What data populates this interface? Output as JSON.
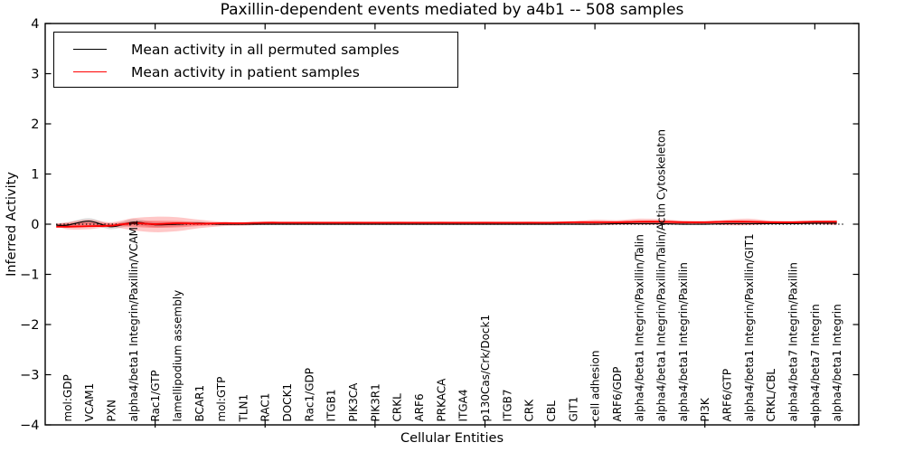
{
  "figure": {
    "title": "Paxillin-dependent events mediated by a4b1 -- 508 samples",
    "xlabel": "Cellular Entities",
    "ylabel": "Inferred Activity"
  },
  "legend": {
    "items": [
      {
        "label": "Mean activity in all permuted samples",
        "color": "#000000"
      },
      {
        "label": "Mean activity in patient samples",
        "color": "#ff0000"
      }
    ]
  },
  "colors": {
    "permuted_line": "#000000",
    "patient_line": "#ff0000",
    "patient_band": "#ff0000",
    "permuted_band": "#000000",
    "frame": "#000000",
    "zero_line": "#000000"
  },
  "chart_data": {
    "type": "line",
    "title": "Paxillin-dependent events mediated by a4b1 -- 508 samples",
    "xlabel": "Cellular Entities",
    "ylabel": "Inferred Activity",
    "xlim": [
      0,
      37
    ],
    "ylim": [
      -4,
      4
    ],
    "grid": false,
    "legend_position": "upper left",
    "yticks": [
      4,
      3,
      2,
      1,
      0,
      -1,
      -2,
      -3,
      -4
    ],
    "yticklabels": [
      "4",
      "3",
      "2",
      "1",
      "0",
      "−1",
      "−2",
      "−3",
      "−4"
    ],
    "xticks_major": [
      5,
      10,
      15,
      20,
      25,
      30,
      35
    ],
    "zero_line": {
      "y": 0,
      "style": "dotted"
    },
    "categories": [
      "mol:GDP",
      "VCAM1",
      "PXN",
      "alpha4/beta1 Integrin/Paxillin/VCAM1",
      "Rac1/GTP",
      "lamellipodium assembly",
      "BCAR1",
      "mol:GTP",
      "TLN1",
      "RAC1",
      "DOCK1",
      "Rac1/GDP",
      "ITGB1",
      "PIK3CA",
      "PIK3R1",
      "CRKL",
      "ARF6",
      "PRKACA",
      "ITGA4",
      "p130Cas/Crk/Dock1",
      "ITGB7",
      "CRK",
      "CBL",
      "GIT1",
      "cell adhesion",
      "ARF6/GDP",
      "alpha4/beta1 Integrin/Paxillin/Talin",
      "alpha4/beta1 Integrin/Paxillin/Talin/Actin Cytoskeleton",
      "alpha4/beta1 Integrin/Paxillin",
      "PI3K",
      "ARF6/GTP",
      "alpha4/beta1 Integrin/Paxillin/GIT1",
      "CRKL/CBL",
      "alpha4/beta7 Integrin/Paxillin",
      "alpha4/beta7 Integrin",
      "alpha4/beta1 Integrin"
    ],
    "series": [
      {
        "name": "Mean activity in all permuted samples",
        "color": "#000000",
        "values": [
          -0.02,
          0.06,
          -0.05,
          0.04,
          -0.01,
          0,
          0.02,
          0,
          0,
          0,
          0,
          0,
          0,
          0,
          0,
          0,
          0,
          0,
          0,
          0,
          0,
          0,
          0,
          0,
          0,
          0.01,
          0.01,
          0.01,
          0,
          0,
          0.01,
          0.01,
          0.01,
          0.01,
          0.02,
          0.02
        ]
      },
      {
        "name": "Mean activity in patient samples",
        "color": "#ff0000",
        "values": [
          -0.05,
          -0.04,
          -0.03,
          0.02,
          0,
          0.02,
          0.01,
          0.02,
          0.02,
          0.03,
          0.03,
          0.03,
          0.03,
          0.03,
          0.03,
          0.03,
          0.03,
          0.03,
          0.03,
          0.03,
          0.03,
          0.03,
          0.03,
          0.04,
          0.04,
          0.04,
          0.05,
          0.05,
          0.04,
          0.04,
          0.05,
          0.05,
          0.04,
          0.04,
          0.05,
          0.05
        ]
      }
    ],
    "bands": [
      {
        "name": "patient-band",
        "color": "#ff0000",
        "opacity": 0.22,
        "upper": [
          0.04,
          0.09,
          0.04,
          0.12,
          0.15,
          0.14,
          0.09,
          0.05,
          0.04,
          0.05,
          0.04,
          0.05,
          0.04,
          0.05,
          0.04,
          0.05,
          0.04,
          0.05,
          0.04,
          0.05,
          0.04,
          0.05,
          0.04,
          0.05,
          0.09,
          0.08,
          0.11,
          0.1,
          0.07,
          0.06,
          0.09,
          0.11,
          0.07,
          0.06,
          0.07,
          0.08
        ],
        "lower": [
          -0.1,
          -0.1,
          -0.06,
          -0.12,
          -0.16,
          -0.14,
          -0.08,
          -0.04,
          -0.03,
          -0.01,
          -0.01,
          -0.01,
          -0.01,
          -0.01,
          -0.01,
          -0.01,
          -0.01,
          -0.01,
          -0.01,
          -0.01,
          -0.01,
          -0.01,
          -0.01,
          -0.01,
          -0.02,
          -0.01,
          -0.01,
          -0.01,
          0,
          0,
          -0.02,
          -0.02,
          0,
          0,
          0,
          -0.02
        ]
      },
      {
        "name": "permuted-band",
        "color": "#000000",
        "opacity": 0.13,
        "upper": [
          0.03,
          0.12,
          0.0,
          0.1,
          0.04,
          0.04,
          0.05,
          0.02,
          0.01,
          0.005,
          0.005,
          0.005,
          0.005,
          0.005,
          0.005,
          0.005,
          0.005,
          0.005,
          0.005,
          0.005,
          0.005,
          0.005,
          0.005,
          0.005,
          0.005,
          0.015,
          0.015,
          0.015,
          0.005,
          0.005,
          0.015,
          0.015,
          0.015,
          0.015,
          0.025,
          0.025
        ],
        "lower": [
          -0.07,
          0.0,
          -0.1,
          -0.02,
          -0.06,
          -0.04,
          -0.01,
          -0.02,
          -0.01,
          -0.005,
          -0.005,
          -0.005,
          -0.005,
          -0.005,
          -0.005,
          -0.005,
          -0.005,
          -0.005,
          -0.005,
          -0.005,
          -0.005,
          -0.005,
          -0.005,
          -0.005,
          -0.005,
          0.005,
          0.005,
          0.005,
          -0.005,
          -0.005,
          0.005,
          0.005,
          0.005,
          0.005,
          0.015,
          0.015
        ]
      }
    ]
  }
}
